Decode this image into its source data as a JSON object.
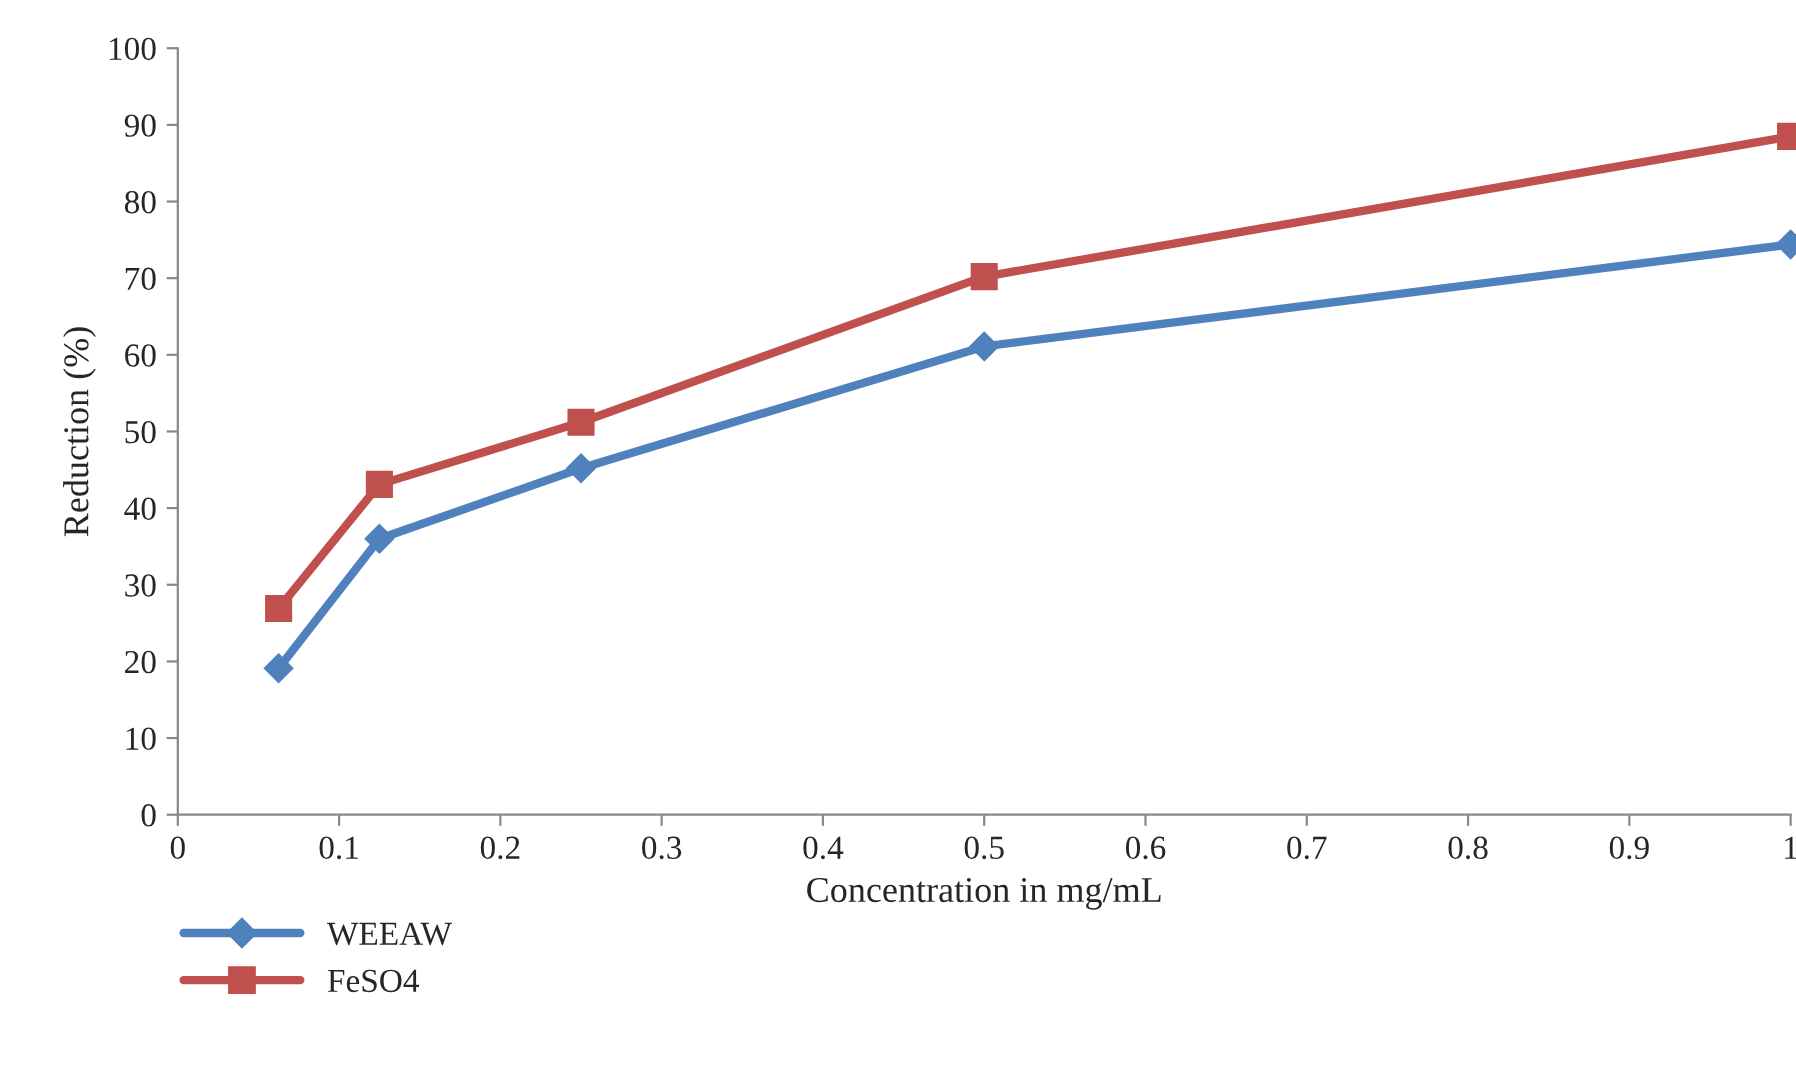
{
  "chart_data": {
    "type": "line",
    "xlabel": "Concentration in mg/mL",
    "ylabel": "Reduction (%)",
    "x": [
      0.0625,
      0.125,
      0.25,
      0.5,
      1
    ],
    "series": [
      {
        "name": "WEEAW",
        "color": "#4f81bd",
        "marker": "diamond",
        "values": [
          19.1,
          36.0,
          45.2,
          61.1,
          74.4
        ]
      },
      {
        "name": "FeSO4",
        "color": "#c0504d",
        "marker": "square",
        "values": [
          26.9,
          43.1,
          51.2,
          70.2,
          88.5
        ]
      }
    ],
    "xlim": [
      0,
      1
    ],
    "xticks": [
      0,
      0.1,
      0.2,
      0.3,
      0.4,
      0.5,
      0.6,
      0.7,
      0.8,
      0.9,
      1
    ],
    "ylim": [
      0,
      100
    ],
    "yticks": [
      0,
      10,
      20,
      30,
      40,
      50,
      60,
      70,
      80,
      90,
      100
    ],
    "grid": false,
    "legend": "bottom left",
    "line_style": "solid"
  }
}
